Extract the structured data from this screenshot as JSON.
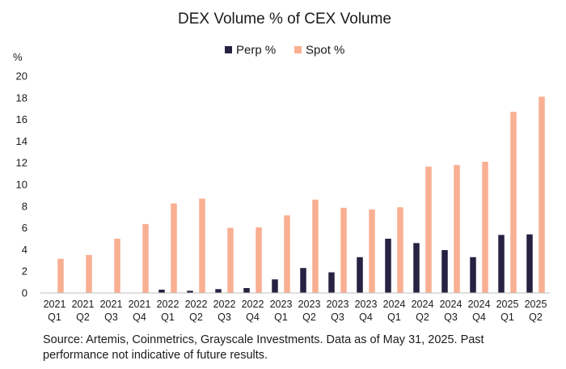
{
  "chart_data": {
    "type": "bar",
    "title": "DEX Volume % of CEX Volume",
    "ylabel": "%",
    "xlabel": "",
    "ylim": [
      0,
      20
    ],
    "yticks": [
      0,
      2,
      4,
      6,
      8,
      10,
      12,
      14,
      16,
      18,
      20
    ],
    "grid": false,
    "legend_position": "top-center",
    "categories": [
      [
        "2021",
        "Q1"
      ],
      [
        "2021",
        "Q2"
      ],
      [
        "2021",
        "Q3"
      ],
      [
        "2021",
        "Q4"
      ],
      [
        "2022",
        "Q1"
      ],
      [
        "2022",
        "Q2"
      ],
      [
        "2022",
        "Q3"
      ],
      [
        "2022",
        "Q4"
      ],
      [
        "2023",
        "Q1"
      ],
      [
        "2023",
        "Q2"
      ],
      [
        "2023",
        "Q3"
      ],
      [
        "2023",
        "Q4"
      ],
      [
        "2024",
        "Q1"
      ],
      [
        "2024",
        "Q2"
      ],
      [
        "2024",
        "Q3"
      ],
      [
        "2024",
        "Q4"
      ],
      [
        "2025",
        "Q1"
      ],
      [
        "2025",
        "Q2"
      ]
    ],
    "series": [
      {
        "name": "Perp %",
        "color": "#272142",
        "values": [
          0,
          0,
          0,
          0,
          0.3,
          0.2,
          0.35,
          0.45,
          1.25,
          2.3,
          1.9,
          3.3,
          5.0,
          4.6,
          3.95,
          3.3,
          5.35,
          5.4
        ]
      },
      {
        "name": "Spot %",
        "color": "#F9AF92",
        "values": [
          3.15,
          3.5,
          5.0,
          6.35,
          8.25,
          8.7,
          6.0,
          6.05,
          7.15,
          8.6,
          7.85,
          7.7,
          7.9,
          11.65,
          11.8,
          12.1,
          16.7,
          18.1
        ]
      }
    ]
  },
  "source_text": "Source: Artemis, Coinmetrics, Grayscale Investments. Data as of May 31, 2025. Past performance not indicative of future results.",
  "colors": {
    "axis": "#bfbfbf",
    "text": "#1a1a1a"
  }
}
